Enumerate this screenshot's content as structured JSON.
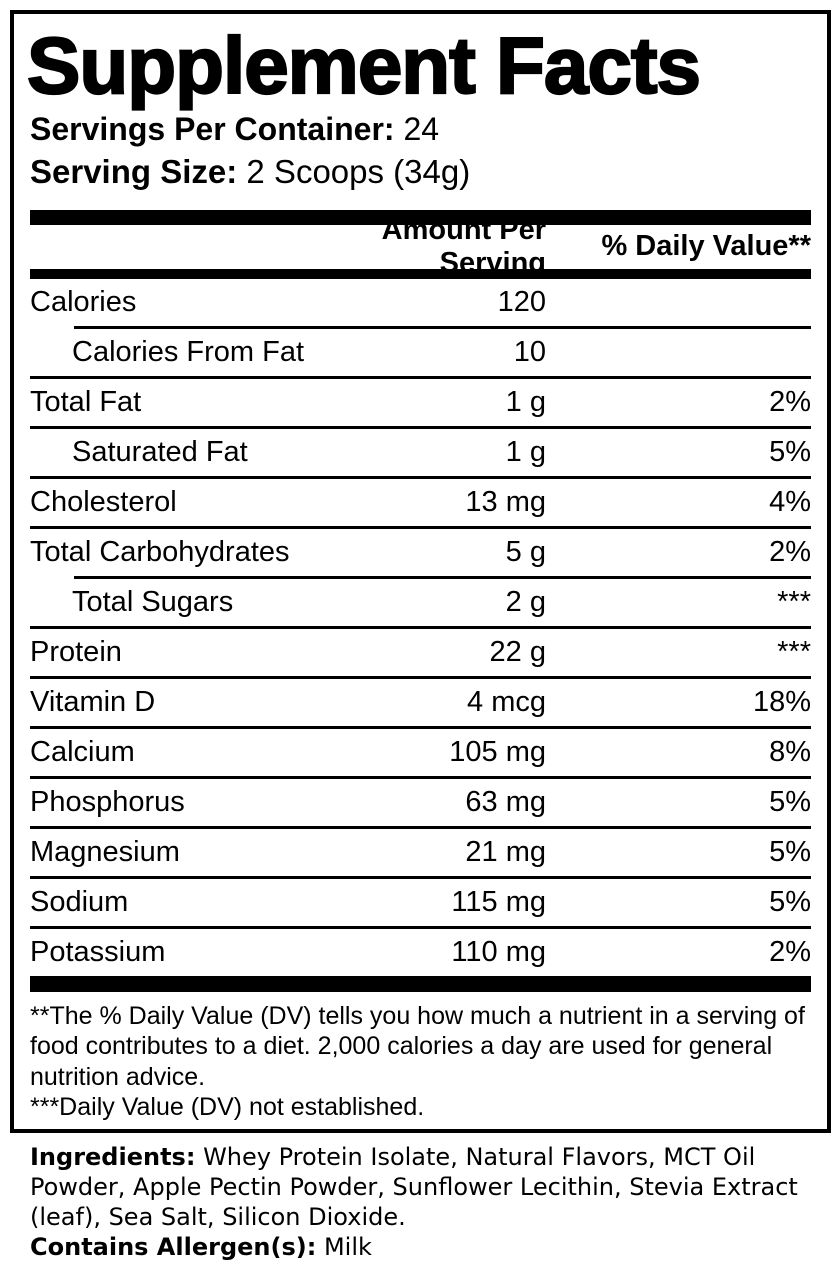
{
  "label": {
    "title": "Supplement Facts",
    "servings_per_container": {
      "label": "Servings Per Container:",
      "value": "24"
    },
    "serving_size": {
      "label": "Serving Size:",
      "value": "2 Scoops (34g)"
    },
    "columns": {
      "amount_header": "Amount Per Serving",
      "dv_header": "% Daily Value**"
    },
    "rows": [
      {
        "name": "Calories",
        "amount": "120",
        "dv": "",
        "indent": false,
        "sep_above": "none"
      },
      {
        "name": "Calories From Fat",
        "amount": "10",
        "dv": "",
        "indent": true,
        "sep_above": "indented"
      },
      {
        "name": "Total Fat",
        "amount": "1 g",
        "dv": "2%",
        "indent": false,
        "sep_above": "full"
      },
      {
        "name": "Saturated Fat",
        "amount": "1 g",
        "dv": "5%",
        "indent": true,
        "sep_above": "full"
      },
      {
        "name": "Cholesterol",
        "amount": "13 mg",
        "dv": "4%",
        "indent": false,
        "sep_above": "full"
      },
      {
        "name": "Total Carbohydrates",
        "amount": "5 g",
        "dv": "2%",
        "indent": false,
        "sep_above": "full"
      },
      {
        "name": "Total Sugars",
        "amount": "2 g",
        "dv": "***",
        "indent": true,
        "sep_above": "indented"
      },
      {
        "name": "Protein",
        "amount": "22 g",
        "dv": "***",
        "indent": false,
        "sep_above": "full"
      },
      {
        "name": "Vitamin D",
        "amount": "4 mcg",
        "dv": "18%",
        "indent": false,
        "sep_above": "full"
      },
      {
        "name": "Calcium",
        "amount": "105 mg",
        "dv": "8%",
        "indent": false,
        "sep_above": "full"
      },
      {
        "name": "Phosphorus",
        "amount": "63 mg",
        "dv": "5%",
        "indent": false,
        "sep_above": "full"
      },
      {
        "name": "Magnesium",
        "amount": "21 mg",
        "dv": "5%",
        "indent": false,
        "sep_above": "full"
      },
      {
        "name": "Sodium",
        "amount": "115 mg",
        "dv": "5%",
        "indent": false,
        "sep_above": "full"
      },
      {
        "name": "Potassium",
        "amount": "110 mg",
        "dv": "2%",
        "indent": false,
        "sep_above": "full"
      }
    ],
    "footnotes": [
      "**The % Daily Value (DV) tells you how much a nutrient in a serving of food contributes to a diet. 2,000 calories a day are used for general nutrition advice.",
      "***Daily Value (DV) not established."
    ],
    "ingredients": {
      "label": "Ingredients:",
      "value": "Whey Protein Isolate, Natural Flavors, MCT Oil Powder, Apple Pectin Powder, Sunflower Lecithin, Stevia Extract (leaf), Sea Salt, Silicon Dioxide."
    },
    "allergens": {
      "label": "Contains Allergen(s):",
      "value": "Milk"
    },
    "colors": {
      "text": "#000000",
      "background": "#ffffff"
    }
  }
}
